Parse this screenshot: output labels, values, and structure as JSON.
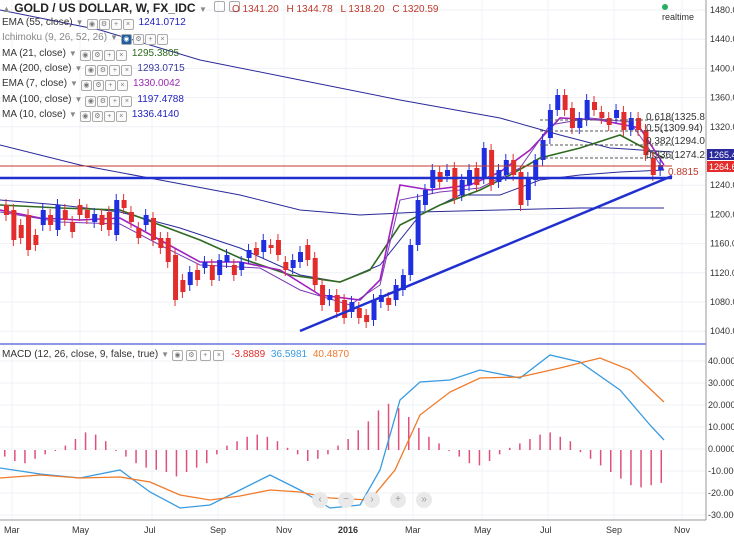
{
  "symbol": {
    "title": "GOLD / US DOLLAR, W, FX_IDC",
    "open": "O 1341.20",
    "high": "H 1344.78",
    "low": "L 1318.20",
    "close": "C 1320.59",
    "realtime": "realtime"
  },
  "indicators": [
    {
      "name": "EMA (55, close)",
      "value": "1241.0712",
      "color": "#1f1fbf"
    },
    {
      "name": "Ichimoku (9, 26, 52, 26)",
      "value": "",
      "color": "#555"
    },
    {
      "name": "MA (21, close)",
      "value": "1295.3805",
      "color": "#9b2ab5"
    },
    {
      "name": "MA (200, close)",
      "value": "1293.0715",
      "color": "#3a3aa0"
    },
    {
      "name": "EMA (7, close)",
      "value": "1330.0042",
      "color": "#9b2ab5"
    },
    {
      "name": "MA (100, close)",
      "value": "1197.4788",
      "color": "#1f1fbf"
    },
    {
      "name": "MA (10, close)",
      "value": "1336.4140",
      "color": "#1f1fbf"
    }
  ],
  "price_axis": [
    "1480.00",
    "1440.00",
    "1400.00",
    "1360.00",
    "1320.00",
    "1280.00",
    "1240.00",
    "1200.00",
    "1160.00",
    "1120.00",
    "1080.00",
    "1040.00"
  ],
  "price_badges": {
    "upper": "1265.4",
    "lower": "1264.6"
  },
  "fib_labels": [
    "0.618(1325.8",
    "0.5(1309.94)",
    "0.382(1294.0",
    "0.236(1274.2",
    "0.8815"
  ],
  "macd": {
    "label": "MACD (12, 26, close, 9, false, true)",
    "v1": "-3.8889",
    "v2": "36.5981",
    "v3": "40.4870"
  },
  "macd_axis": [
    "40.0000",
    "30.0000",
    "20.0000",
    "10.0000",
    "0.0000",
    "-10.0000",
    "-20.0000",
    "-30.0000"
  ],
  "time_axis": [
    "Mar",
    "May",
    "Jul",
    "Sep",
    "Nov",
    "2016",
    "Mar",
    "May",
    "Jul",
    "Sep",
    "Nov"
  ],
  "colors": {
    "up": "#1f2fe0",
    "down": "#e32d2d",
    "green": "#2e6b1f",
    "purple": "#a020c0",
    "navy": "#2a2a9a",
    "macd": "#3a9be0",
    "signal": "#f07a2a",
    "hist": "#e0507a",
    "trend": "#1f2fd0"
  }
}
